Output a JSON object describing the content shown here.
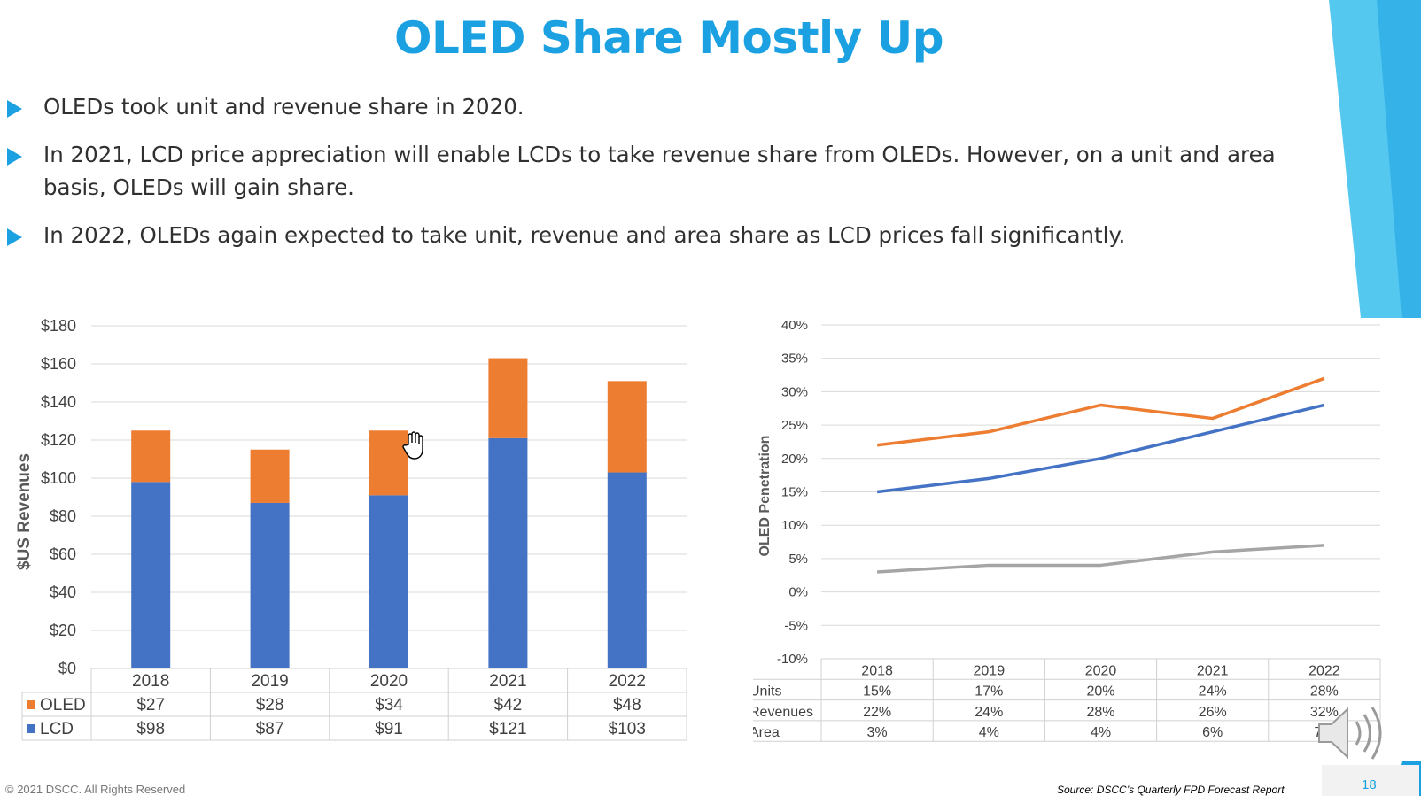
{
  "slide": {
    "title": "OLED Share Mostly Up",
    "bullets": [
      "OLEDs took unit and revenue share in 2020.",
      "In 2021, LCD price appreciation will enable LCDs to take revenue share from OLEDs. However, on a unit and area basis, OLEDs will gain share.",
      "In 2022, OLEDs again expected to take unit, revenue and area share as LCD prices fall significantly."
    ],
    "copyright": "© 2021 DSCC. All Rights Reserved",
    "source": "Source: DSCC’s Quarterly FPD Forecast Report",
    "page_number": "18",
    "accent_color": "#1BA1E2"
  },
  "chart_data": [
    {
      "type": "bar",
      "stacked": true,
      "categories": [
        "2018",
        "2019",
        "2020",
        "2021",
        "2022"
      ],
      "series": [
        {
          "name": "LCD",
          "values": [
            98,
            87,
            91,
            121,
            103
          ],
          "color": "#4472C4"
        },
        {
          "name": "OLED",
          "values": [
            27,
            28,
            34,
            42,
            48
          ],
          "color": "#ED7D31"
        }
      ],
      "ylabel": "$US Revenues",
      "ylim": [
        0,
        180
      ],
      "yticks": [
        "$0",
        "$20",
        "$40",
        "$60",
        "$80",
        "$100",
        "$120",
        "$140",
        "$160",
        "$180"
      ],
      "data_table": [
        {
          "label": "OLED",
          "cells": [
            "$27",
            "$28",
            "$34",
            "$42",
            "$48"
          ]
        },
        {
          "label": "LCD",
          "cells": [
            "$98",
            "$87",
            "$91",
            "$121",
            "$103"
          ]
        }
      ],
      "grid": true
    },
    {
      "type": "line",
      "categories": [
        "2018",
        "2019",
        "2020",
        "2021",
        "2022"
      ],
      "series": [
        {
          "name": "Units",
          "values": [
            15,
            17,
            20,
            24,
            28
          ],
          "color": "#4472C4"
        },
        {
          "name": "Revenues",
          "values": [
            22,
            24,
            28,
            26,
            32
          ],
          "color": "#ED7D31"
        },
        {
          "name": "Area",
          "values": [
            3,
            4,
            4,
            6,
            7
          ],
          "color": "#A5A5A5"
        }
      ],
      "ylabel": "OLED Penetration",
      "ylim": [
        -10,
        40
      ],
      "yticks": [
        "-10%",
        "-5%",
        "0%",
        "5%",
        "10%",
        "15%",
        "20%",
        "25%",
        "30%",
        "35%",
        "40%"
      ],
      "data_table": [
        {
          "label": "Units",
          "cells": [
            "15%",
            "17%",
            "20%",
            "24%",
            "28%"
          ]
        },
        {
          "label": "Revenues",
          "cells": [
            "22%",
            "24%",
            "28%",
            "26%",
            "32%"
          ]
        },
        {
          "label": "Area",
          "cells": [
            "3%",
            "4%",
            "4%",
            "6%",
            "7%"
          ]
        }
      ],
      "grid": true
    }
  ]
}
